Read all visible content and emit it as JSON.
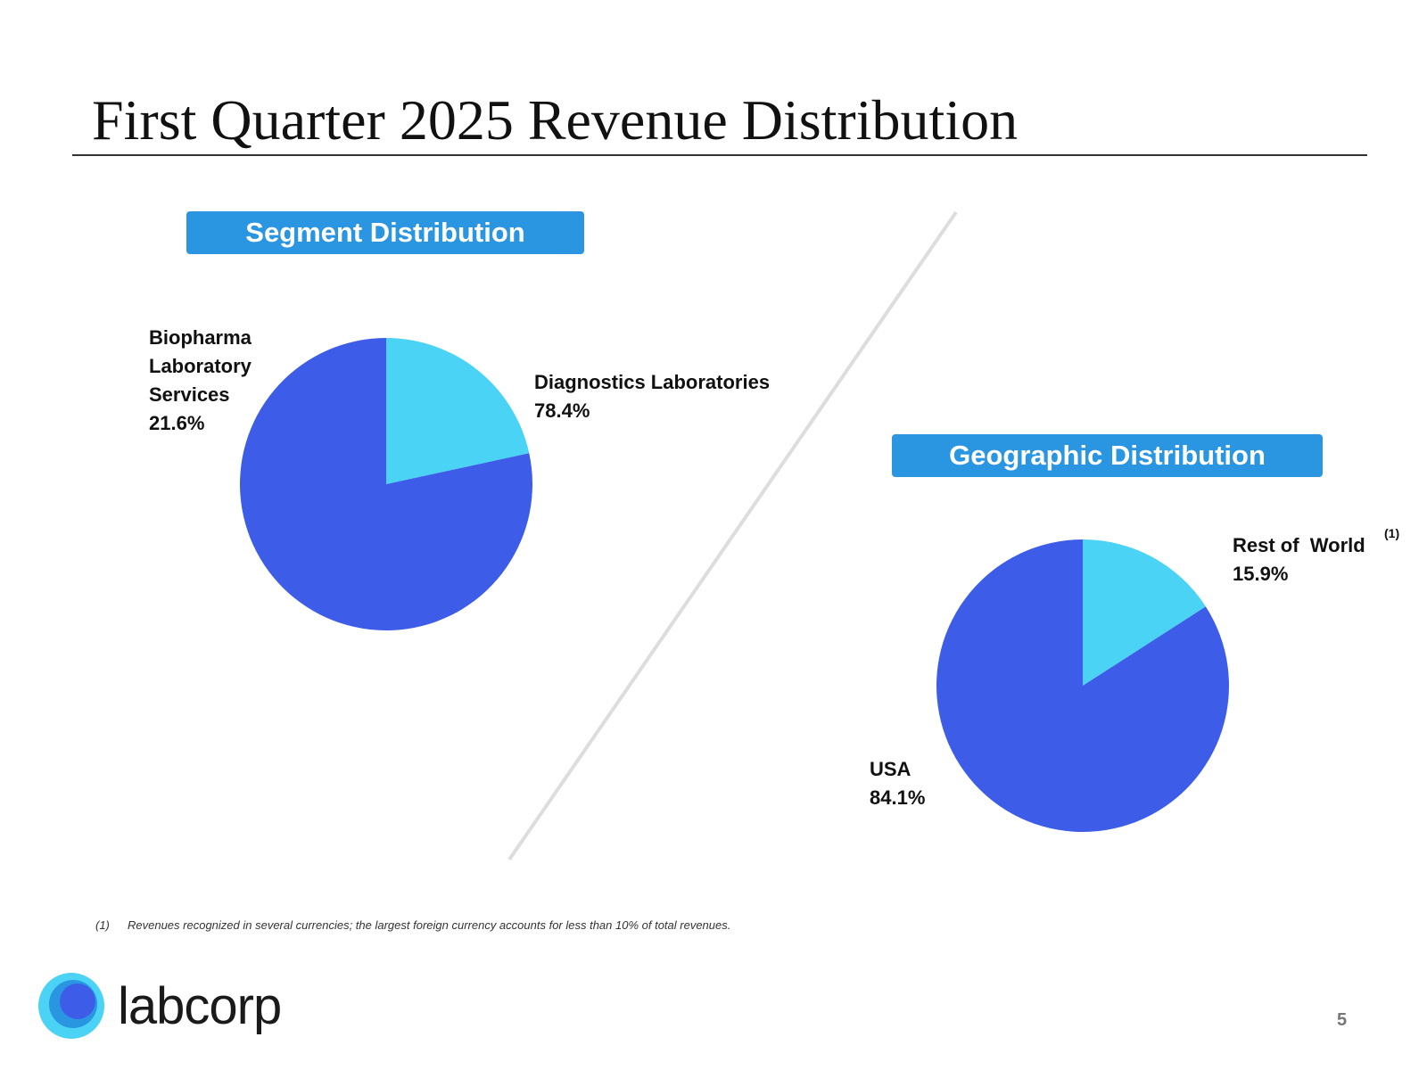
{
  "slide": {
    "title": "First Quarter 2025 Revenue Distribution",
    "page_number": "5",
    "footnote_number": "(1)",
    "footnote_text": "Revenues recognized in several currencies; the largest foreign currency accounts for less than 10% of total revenues.",
    "logo_text": "labcorp",
    "logo_icon": "labcorp-circle-logo-icon",
    "colors": {
      "banner": "#2a95e0",
      "series_primary": "#3d5de8",
      "series_secondary": "#4bd3f5",
      "divider": "#dddddd"
    }
  },
  "chart_data": [
    {
      "type": "pie",
      "title": "Segment Distribution",
      "slices": [
        {
          "label_lines": [
            "Diagnostics Laboratories"
          ],
          "value": 78.4,
          "value_label": "78.4%",
          "color": "#3d5de8"
        },
        {
          "label_lines": [
            "Biopharma",
            "Laboratory",
            "Services"
          ],
          "value": 21.6,
          "value_label": "21.6%",
          "color": "#4bd3f5"
        }
      ]
    },
    {
      "type": "pie",
      "title": "Geographic Distribution",
      "slices": [
        {
          "label_lines": [
            "USA"
          ],
          "value": 84.1,
          "value_label": "84.1%",
          "color": "#3d5de8"
        },
        {
          "label_lines": [
            "Rest of  World"
          ],
          "value": 15.9,
          "value_label": "15.9%",
          "color": "#4bd3f5",
          "footnote_ref": "(1)"
        }
      ]
    }
  ]
}
